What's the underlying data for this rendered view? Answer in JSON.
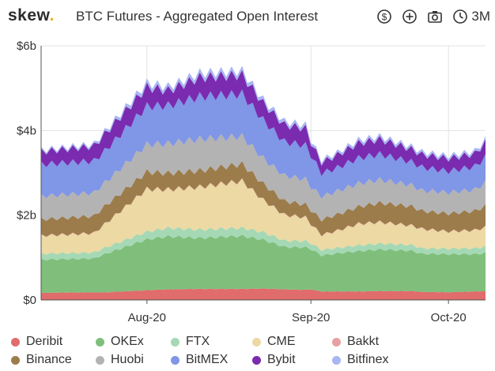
{
  "header": {
    "logo_text": "skew",
    "logo_dot": ".",
    "title": "BTC Futures - Aggregated Open Interest",
    "tools": {
      "currency_icon": "dollar-circle-icon",
      "add_icon": "plus-circle-icon",
      "snapshot_icon": "camera-icon",
      "range_icon": "clock-icon",
      "range_label": "3M"
    }
  },
  "colors": {
    "accent": "#f0a92e",
    "Deribit": "#e06c6c",
    "OKEx": "#7fbf7b",
    "FTX": "#a5d8b5",
    "CME": "#ecd9a3",
    "Bakkt": "#e8a0a0",
    "Binance": "#9c7c4a",
    "Huobi": "#b3b3b3",
    "BitMEX": "#8096e6",
    "Bybit": "#7a2bb0",
    "Bitfinex": "#a9b6f2"
  },
  "chart_data": {
    "type": "area",
    "stacked": true,
    "title": "BTC Futures - Aggregated Open Interest",
    "xlabel": "",
    "ylabel": "",
    "ylim": [
      0,
      6
    ],
    "yticks": [
      0,
      2,
      4,
      6
    ],
    "ytick_labels": [
      "$0",
      "$2b",
      "$4b",
      "$6b"
    ],
    "x_range": [
      0,
      84
    ],
    "xticks": [
      {
        "x": 20,
        "label": "Aug-20"
      },
      {
        "x": 51,
        "label": "Sep-20"
      },
      {
        "x": 77,
        "label": "Oct-20"
      }
    ],
    "grid": true,
    "legend_position": "bottom",
    "series_order": [
      "Deribit",
      "OKEx",
      "FTX",
      "CME",
      "Bakkt",
      "Binance",
      "Huobi",
      "BitMEX",
      "Bybit",
      "Bitfinex"
    ],
    "knots": {
      "x": [
        0,
        10,
        12,
        20,
        24,
        30,
        38,
        42,
        46,
        50,
        51,
        53,
        56,
        60,
        64,
        70,
        72,
        77,
        82,
        84
      ],
      "Deribit": [
        0.17,
        0.18,
        0.18,
        0.23,
        0.25,
        0.26,
        0.26,
        0.27,
        0.25,
        0.24,
        0.25,
        0.2,
        0.2,
        0.2,
        0.21,
        0.21,
        0.19,
        0.18,
        0.2,
        0.21
      ],
      "OKEx": [
        0.78,
        0.8,
        0.9,
        1.2,
        1.25,
        1.2,
        1.25,
        1.15,
        1.0,
        1.0,
        0.95,
        0.85,
        0.9,
        0.95,
        0.98,
        0.95,
        0.9,
        0.9,
        0.88,
        0.9
      ],
      "FTX": [
        0.14,
        0.14,
        0.15,
        0.18,
        0.2,
        0.2,
        0.19,
        0.18,
        0.15,
        0.15,
        0.14,
        0.13,
        0.13,
        0.14,
        0.14,
        0.14,
        0.13,
        0.13,
        0.14,
        0.15
      ],
      "CME": [
        0.42,
        0.45,
        0.55,
        1.0,
        0.9,
        1.0,
        1.1,
        0.75,
        0.6,
        0.55,
        0.45,
        0.35,
        0.4,
        0.5,
        0.5,
        0.45,
        0.45,
        0.4,
        0.42,
        0.45
      ],
      "Bakkt": [
        0.01,
        0.01,
        0.01,
        0.01,
        0.01,
        0.01,
        0.01,
        0.01,
        0.01,
        0.01,
        0.01,
        0.01,
        0.01,
        0.01,
        0.01,
        0.01,
        0.01,
        0.01,
        0.01,
        0.01
      ],
      "Binance": [
        0.38,
        0.4,
        0.42,
        0.4,
        0.38,
        0.38,
        0.4,
        0.38,
        0.32,
        0.3,
        0.32,
        0.35,
        0.38,
        0.4,
        0.45,
        0.45,
        0.42,
        0.42,
        0.45,
        0.5
      ],
      "Huobi": [
        0.55,
        0.55,
        0.55,
        0.65,
        0.7,
        0.75,
        0.65,
        0.6,
        0.6,
        0.6,
        0.55,
        0.55,
        0.55,
        0.55,
        0.55,
        0.5,
        0.48,
        0.5,
        0.5,
        0.55
      ],
      "BitMEX": [
        0.75,
        0.75,
        0.75,
        0.9,
        0.9,
        1.0,
        1.0,
        0.9,
        0.8,
        0.8,
        0.75,
        0.55,
        0.55,
        0.6,
        0.6,
        0.55,
        0.55,
        0.5,
        0.55,
        0.6
      ],
      "Bybit": [
        0.3,
        0.35,
        0.4,
        0.45,
        0.35,
        0.45,
        0.45,
        0.4,
        0.4,
        0.4,
        0.3,
        0.25,
        0.3,
        0.35,
        0.35,
        0.3,
        0.3,
        0.3,
        0.3,
        0.35
      ],
      "Bitfinex": [
        0.04,
        0.05,
        0.06,
        0.1,
        0.09,
        0.1,
        0.1,
        0.08,
        0.08,
        0.08,
        0.07,
        0.06,
        0.06,
        0.07,
        0.07,
        0.06,
        0.06,
        0.06,
        0.06,
        0.07
      ]
    },
    "wiggle": {
      "amplitude": 0.09,
      "period": 2
    }
  },
  "legend": {
    "rows": [
      [
        "Deribit",
        "OKEx",
        "FTX",
        "CME",
        "Bakkt"
      ],
      [
        "Binance",
        "Huobi",
        "BitMEX",
        "Bybit",
        "Bitfinex"
      ]
    ]
  }
}
